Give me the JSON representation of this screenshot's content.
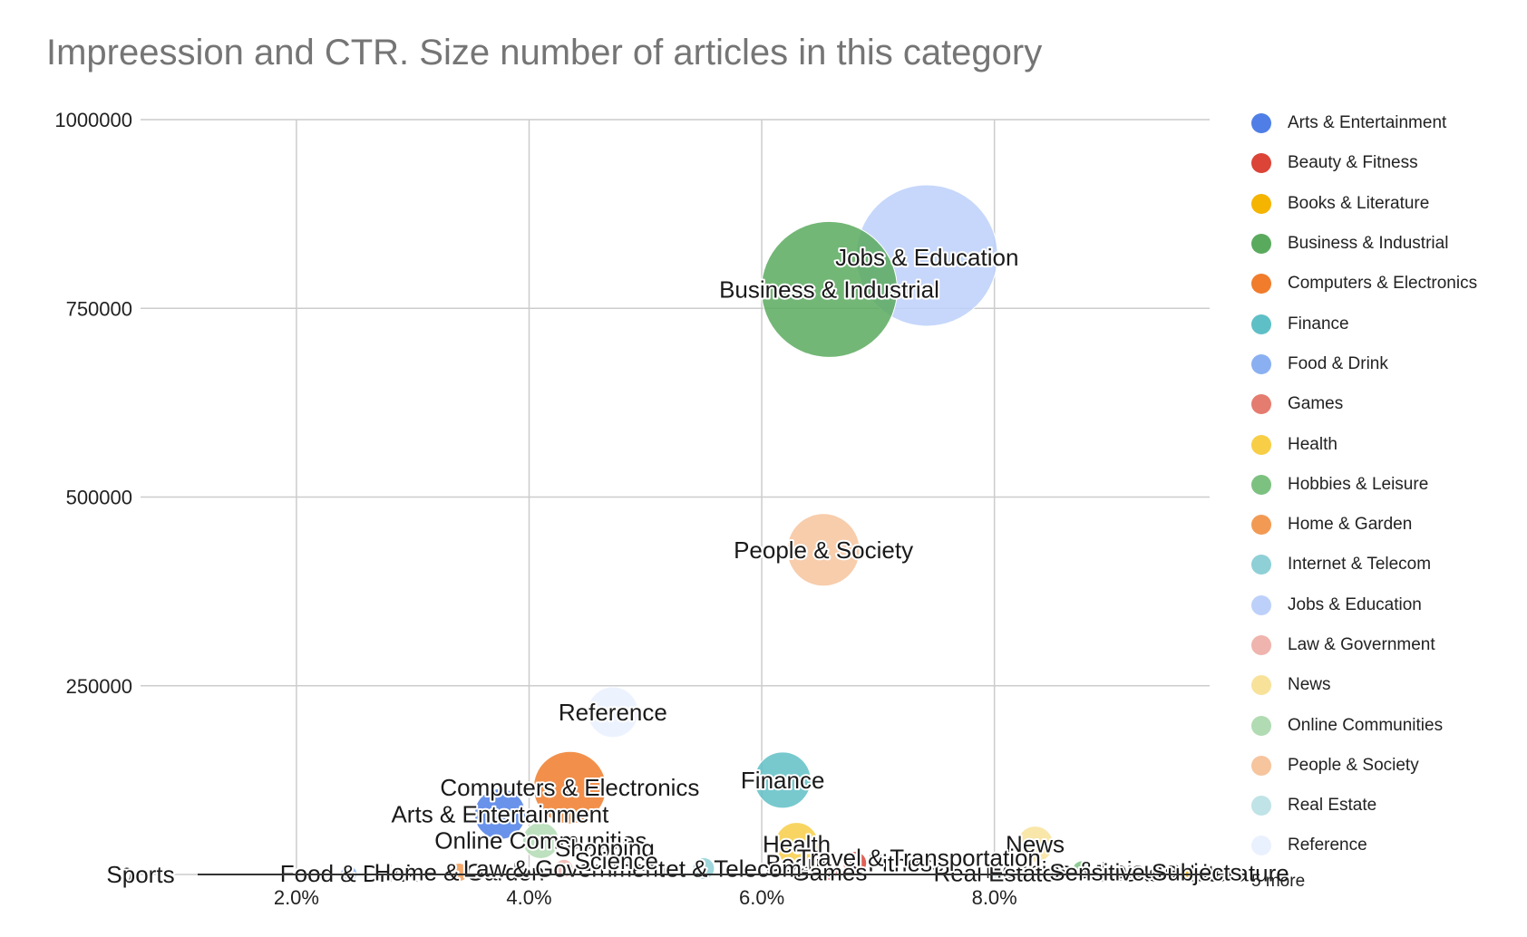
{
  "chart_data": {
    "type": "bubble",
    "title": "Impreession and CTR. Size number of articles in this category",
    "xlabel": "",
    "ylabel": "",
    "xlim": [
      0.0066,
      0.0985
    ],
    "ylim": [
      0,
      1000000
    ],
    "x_ticks": [
      "2.0%",
      "4.0%",
      "6.0%",
      "8.0%"
    ],
    "x_tick_values": [
      0.02,
      0.04,
      0.06,
      0.08
    ],
    "y_ticks": [
      "0",
      "250000",
      "500000",
      "750000",
      "1000000"
    ],
    "y_tick_values": [
      0,
      250000,
      500000,
      750000,
      1000000
    ],
    "grid": true,
    "legend_position": "right",
    "legend_more": "5 more",
    "series": [
      {
        "name": "Arts & Entertainment",
        "color": "#4f7fe6",
        "x": 0.0375,
        "y": 80000,
        "size": 28,
        "label": "Arts & Entertainment"
      },
      {
        "name": "Beauty & Fitness",
        "color": "#db4437",
        "x": 0.068,
        "y": 15000,
        "size": 13,
        "label": "Beauty & Fitness"
      },
      {
        "name": "Books & Literature",
        "color": "#f4b400",
        "x": 0.097,
        "y": 2000,
        "size": 8,
        "label": "Books & Literature"
      },
      {
        "name": "Business & Industrial",
        "color": "#5aaa5e",
        "x": 0.0658,
        "y": 775000,
        "size": 75,
        "label": "Business & Industrial"
      },
      {
        "name": "Computers & Electronics",
        "color": "#f07c2c",
        "x": 0.0435,
        "y": 115000,
        "size": 40,
        "label": "Computers & Electronics"
      },
      {
        "name": "Finance",
        "color": "#5fbfc6",
        "x": 0.0618,
        "y": 125000,
        "size": 31,
        "label": "Finance"
      },
      {
        "name": "Food & Drink",
        "color": "#8ab0f2",
        "x": 0.0245,
        "y": 1000,
        "size": 9,
        "label": "Food & Drink"
      },
      {
        "name": "Games",
        "color": "#e47c70",
        "x": 0.0658,
        "y": 3000,
        "size": 9,
        "label": "Games"
      },
      {
        "name": "Health",
        "color": "#f7ce46",
        "x": 0.063,
        "y": 40000,
        "size": 24,
        "label": "Health"
      },
      {
        "name": "Hobbies & Leisure",
        "color": "#7dc181",
        "x": 0.0875,
        "y": 6000,
        "size": 10,
        "label": "Hobbies & Leisure"
      },
      {
        "name": "Home & Garden",
        "color": "#f29a54",
        "x": 0.034,
        "y": 3000,
        "size": 10,
        "label": "Home & Garden"
      },
      {
        "name": "Internet & Telecom",
        "color": "#8ed0d6",
        "x": 0.055,
        "y": 8000,
        "size": 12,
        "label": "Internet & Telecom"
      },
      {
        "name": "Jobs & Education",
        "color": "#bcd0fa",
        "x": 0.0742,
        "y": 820000,
        "size": 78,
        "label": "Jobs & Education"
      },
      {
        "name": "Law & Government",
        "color": "#efb4ad",
        "x": 0.043,
        "y": 8000,
        "size": 10,
        "label": "Law & Government"
      },
      {
        "name": "News",
        "color": "#f8e29a",
        "x": 0.0835,
        "y": 40000,
        "size": 20,
        "label": "News"
      },
      {
        "name": "Online Communities",
        "color": "#b1dbb3",
        "x": 0.041,
        "y": 45000,
        "size": 20,
        "label": "Online Communities"
      },
      {
        "name": "People & Society",
        "color": "#f6c49d",
        "x": 0.0653,
        "y": 430000,
        "size": 40,
        "label": "People & Society"
      },
      {
        "name": "Real Estate",
        "color": "#bfe3e6",
        "x": 0.08,
        "y": 2000,
        "size": 9,
        "label": "Real Estate"
      },
      {
        "name": "Reference",
        "color": "#eaf1fe",
        "x": 0.0472,
        "y": 215000,
        "size": 28,
        "label": "Reference"
      }
    ],
    "overflow_labels": [
      {
        "text": "Sports",
        "x": 0.0066,
        "y": 0
      },
      {
        "text": "Shopping",
        "x": 0.0465,
        "y": 35000
      },
      {
        "text": "Science",
        "x": 0.0475,
        "y": 18000
      },
      {
        "text": "Travel & Transportation",
        "x": 0.0735,
        "y": 22000
      },
      {
        "text": "Sensitive Subjects",
        "x": 0.093,
        "y": 3000
      }
    ]
  }
}
